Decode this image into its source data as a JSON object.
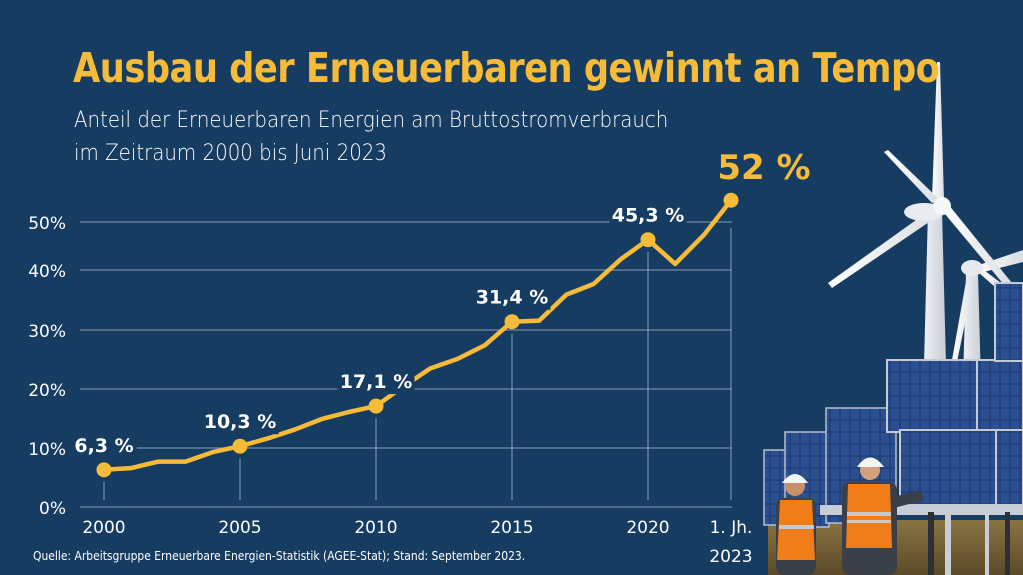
{
  "header": {
    "title": "Ausbau der Erneuerbaren gewinnt an Tempo",
    "subtitle_line1": "Anteil der Erneuerbaren Energien am Bruttostromverbrauch",
    "subtitle_line2": "im Zeitraum 2000 bis Juni 2023"
  },
  "footer": {
    "source": "Quelle: Arbeitsgruppe Erneuerbare Energien-Statistik (AGEE-Stat); Stand: September 2023."
  },
  "colors": {
    "background": "#173c62",
    "accent": "#f7bb3a",
    "text": "#ffffff",
    "grid": "#8fa3ba"
  },
  "illustration": {
    "description": "Wind turbines, solar panels and two workers in orange safety vests and white hard hats",
    "elements": [
      "wind-turbine",
      "wind-turbine",
      "solar-panels",
      "worker",
      "worker"
    ]
  },
  "chart_data": {
    "type": "line",
    "title": "Ausbau der Erneuerbaren gewinnt an Tempo",
    "subtitle": "Anteil der Erneuerbaren Energien am Bruttostromverbrauch im Zeitraum 2000 bis Juni 2023",
    "xlabel": "",
    "ylabel": "",
    "grid": true,
    "legend": "none",
    "ylim": [
      0,
      50
    ],
    "yticks": [
      0,
      10,
      20,
      30,
      40,
      50
    ],
    "ytick_labels": [
      "0%",
      "10%",
      "20%",
      "30%",
      "40%",
      "50%"
    ],
    "xtick_labels": [
      {
        "x": "2000",
        "label": "2000"
      },
      {
        "x": "2005",
        "label": "2005"
      },
      {
        "x": "2010",
        "label": "2010"
      },
      {
        "x": "2015",
        "label": "2015"
      },
      {
        "x": "2020",
        "label": "2020"
      },
      {
        "x": "H1 2023",
        "label_line1": "1. Jh.",
        "label_line2": "2023"
      }
    ],
    "x": [
      "2000",
      "2001",
      "2002",
      "2003",
      "2004",
      "2005",
      "2006",
      "2007",
      "2008",
      "2009",
      "2010",
      "2011",
      "2012",
      "2013",
      "2014",
      "2015",
      "2016",
      "2017",
      "2018",
      "2019",
      "2020",
      "2021",
      "2022",
      "H1 2023"
    ],
    "series": [
      {
        "name": "Anteil Erneuerbare am Bruttostromverbrauch",
        "color": "#f7bb3a",
        "values": [
          6.3,
          6.6,
          7.7,
          7.7,
          9.3,
          10.3,
          11.6,
          13.1,
          14.9,
          16.1,
          17.1,
          20.4,
          23.5,
          25.1,
          27.4,
          31.4,
          31.6,
          36.0,
          37.8,
          42.0,
          45.3,
          41.2,
          46.2,
          52.0
        ]
      }
    ],
    "annotations": [
      {
        "x": "2000",
        "value": 6.3,
        "label": "6,3 %",
        "highlight": false
      },
      {
        "x": "2005",
        "value": 10.3,
        "label": "10,3 %",
        "highlight": false
      },
      {
        "x": "2010",
        "value": 17.1,
        "label": "17,1 %",
        "highlight": false
      },
      {
        "x": "2015",
        "value": 31.4,
        "label": "31,4 %",
        "highlight": false
      },
      {
        "x": "2020",
        "value": 45.3,
        "label": "45,3 %",
        "highlight": false
      },
      {
        "x": "H1 2023",
        "value": 52.0,
        "label": "52 %",
        "highlight": true
      }
    ]
  }
}
